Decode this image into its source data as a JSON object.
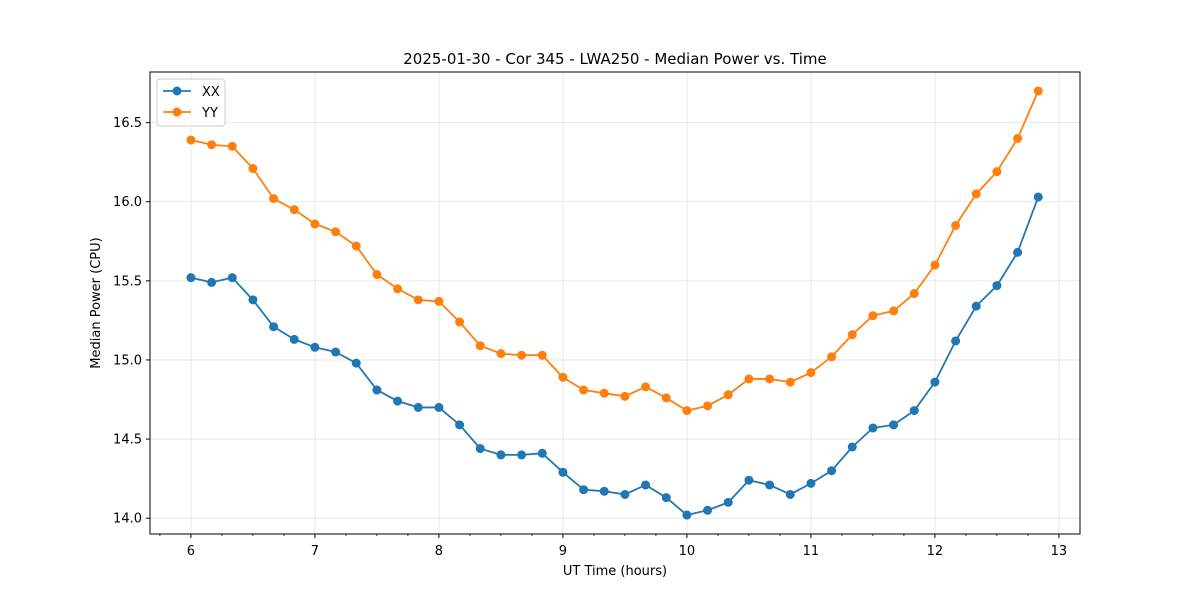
{
  "chart_data": {
    "type": "line",
    "title": "2025-01-30 - Cor 345 - LWA250 - Median Power vs. Time",
    "xlabel": "UT Time (hours)",
    "ylabel": "Median Power (CPU)",
    "xlim": [
      5.67,
      13.17
    ],
    "ylim": [
      13.9,
      16.82
    ],
    "xticks": [
      6,
      7,
      8,
      9,
      10,
      11,
      12,
      13
    ],
    "xtick_labels": [
      "6",
      "7",
      "8",
      "9",
      "10",
      "11",
      "12",
      "13"
    ],
    "yticks": [
      14.0,
      14.5,
      15.0,
      15.5,
      16.0,
      16.5
    ],
    "ytick_labels": [
      "14.0",
      "14.5",
      "15.0",
      "15.5",
      "16.0",
      "16.5"
    ],
    "minor_xticks": 0.25,
    "grid": true,
    "legend_position": "top-left",
    "x": [
      6.0,
      6.1667,
      6.3333,
      6.5,
      6.6667,
      6.8333,
      7.0,
      7.1667,
      7.3333,
      7.5,
      7.6667,
      7.8333,
      8.0,
      8.1667,
      8.3333,
      8.5,
      8.6667,
      8.8333,
      9.0,
      9.1667,
      9.3333,
      9.5,
      9.6667,
      9.8333,
      10.0,
      10.1667,
      10.3333,
      10.5,
      10.6667,
      10.8333,
      11.0,
      11.1667,
      11.3333,
      11.5,
      11.6667,
      11.8333,
      12.0,
      12.1667,
      12.3333,
      12.5,
      12.6667,
      12.8333
    ],
    "series": [
      {
        "name": "XX",
        "color": "#1f77b4",
        "values": [
          15.52,
          15.49,
          15.52,
          15.38,
          15.21,
          15.13,
          15.08,
          15.05,
          14.98,
          14.81,
          14.74,
          14.7,
          14.7,
          14.59,
          14.44,
          14.4,
          14.4,
          14.41,
          14.29,
          14.18,
          14.17,
          14.15,
          14.21,
          14.13,
          14.02,
          14.05,
          14.1,
          14.24,
          14.21,
          14.15,
          14.22,
          14.3,
          14.45,
          14.57,
          14.59,
          14.68,
          14.86,
          15.12,
          15.34,
          15.47,
          15.68,
          16.03
        ]
      },
      {
        "name": "YY",
        "color": "#ff7f0e",
        "values": [
          16.39,
          16.36,
          16.35,
          16.21,
          16.02,
          15.95,
          15.86,
          15.81,
          15.72,
          15.54,
          15.45,
          15.38,
          15.37,
          15.24,
          15.09,
          15.04,
          15.03,
          15.03,
          14.89,
          14.81,
          14.79,
          14.77,
          14.83,
          14.76,
          14.68,
          14.71,
          14.78,
          14.88,
          14.88,
          14.86,
          14.92,
          15.02,
          15.16,
          15.28,
          15.31,
          15.42,
          15.6,
          15.85,
          16.05,
          16.19,
          16.4,
          16.7
        ]
      }
    ]
  }
}
